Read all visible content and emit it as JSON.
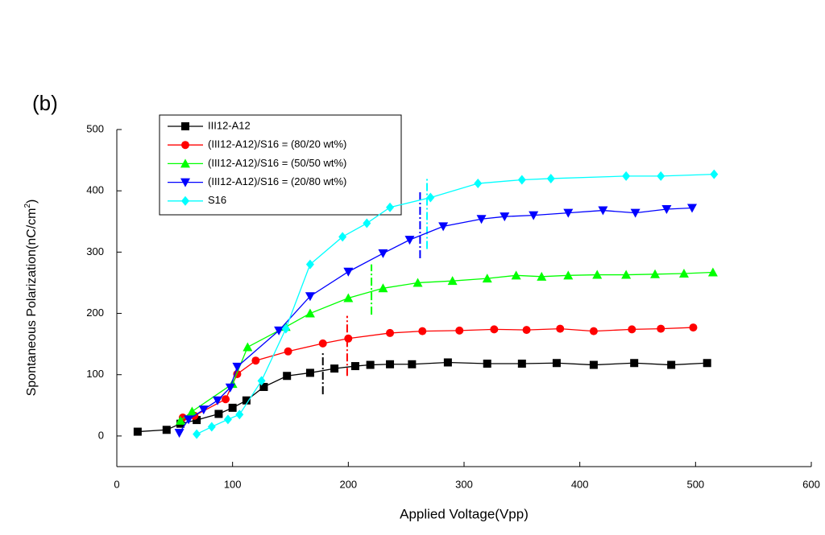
{
  "chart_data": {
    "type": "line",
    "panel_label": "(b)",
    "x_label": "Applied Voltage(Vpp)",
    "y_label_parts": [
      "Spontaneous Polarization(nC/cm",
      "2",
      ")"
    ],
    "xlim": [
      0,
      600
    ],
    "ylim": [
      -50,
      500
    ],
    "xticks": [
      0,
      100,
      200,
      300,
      400,
      500,
      600
    ],
    "yticks": [
      0,
      100,
      200,
      300,
      400,
      500
    ],
    "series": [
      {
        "name": "III12-A12",
        "color": "#000000",
        "marker": "square",
        "x": [
          18,
          43,
          55,
          69,
          88,
          100,
          112,
          127,
          147,
          167,
          188,
          206,
          219,
          236,
          255,
          286,
          320,
          350,
          380,
          412,
          447,
          479,
          510
        ],
        "values": [
          7,
          10,
          20,
          26,
          36,
          46,
          58,
          80,
          98,
          103,
          110,
          114,
          116,
          117,
          117,
          120,
          118,
          118,
          119,
          116,
          119,
          116,
          119
        ]
      },
      {
        "name": "(III12-A12)/S16 = (80/20 wt%)",
        "color": "#ff0000",
        "marker": "circle",
        "x": [
          57,
          67,
          94,
          104,
          120,
          148,
          178,
          200,
          236,
          264,
          296,
          326,
          354,
          383,
          412,
          445,
          470,
          498
        ],
        "values": [
          30,
          33,
          60,
          101,
          123,
          138,
          151,
          159,
          168,
          171,
          172,
          174,
          173,
          175,
          171,
          174,
          175,
          177
        ]
      },
      {
        "name": "(III12-A12)/S16 = (50/50 wt%)",
        "color": "#00ff00",
        "marker": "triangle-up",
        "x": [
          55,
          65,
          100,
          113,
          146,
          167,
          200,
          230,
          260,
          290,
          320,
          345,
          367,
          390,
          415,
          440,
          465,
          490,
          515
        ],
        "values": [
          25,
          40,
          85,
          145,
          178,
          200,
          225,
          241,
          250,
          253,
          257,
          262,
          260,
          262,
          263,
          263,
          264,
          265,
          267
        ]
      },
      {
        "name": "(III12-A12)/S16 = (20/80 wt%)",
        "color": "#0000ff",
        "marker": "triangle-down",
        "x": [
          54,
          62,
          75,
          87,
          98,
          104,
          140,
          167,
          200,
          230,
          253,
          282,
          315,
          335,
          360,
          390,
          420,
          448,
          475,
          497
        ],
        "values": [
          5,
          27,
          43,
          58,
          79,
          113,
          172,
          228,
          268,
          298,
          320,
          342,
          354,
          358,
          360,
          364,
          368,
          364,
          370,
          372
        ]
      },
      {
        "name": "S16",
        "color": "#00ffff",
        "marker": "diamond",
        "x": [
          69,
          82,
          96,
          106,
          125,
          146,
          167,
          195,
          216,
          236,
          271,
          312,
          350,
          375,
          440,
          470,
          516
        ],
        "values": [
          3,
          15,
          27,
          35,
          90,
          175,
          280,
          325,
          347,
          373,
          389,
          412,
          418,
          420,
          424,
          424,
          427
        ]
      }
    ],
    "threshold_lines": [
      {
        "x": 178,
        "y_range": [
          68,
          136
        ],
        "color": "#000000"
      },
      {
        "x": 199,
        "y_range": [
          98,
          196
        ],
        "color": "#ff0000"
      },
      {
        "x": 220,
        "y_range": [
          198,
          280
        ],
        "color": "#00ff00"
      },
      {
        "x": 262,
        "y_range": [
          290,
          400
        ],
        "color": "#0000ff"
      },
      {
        "x": 268,
        "y_range": [
          305,
          420
        ],
        "color": "#00ffff"
      }
    ]
  }
}
